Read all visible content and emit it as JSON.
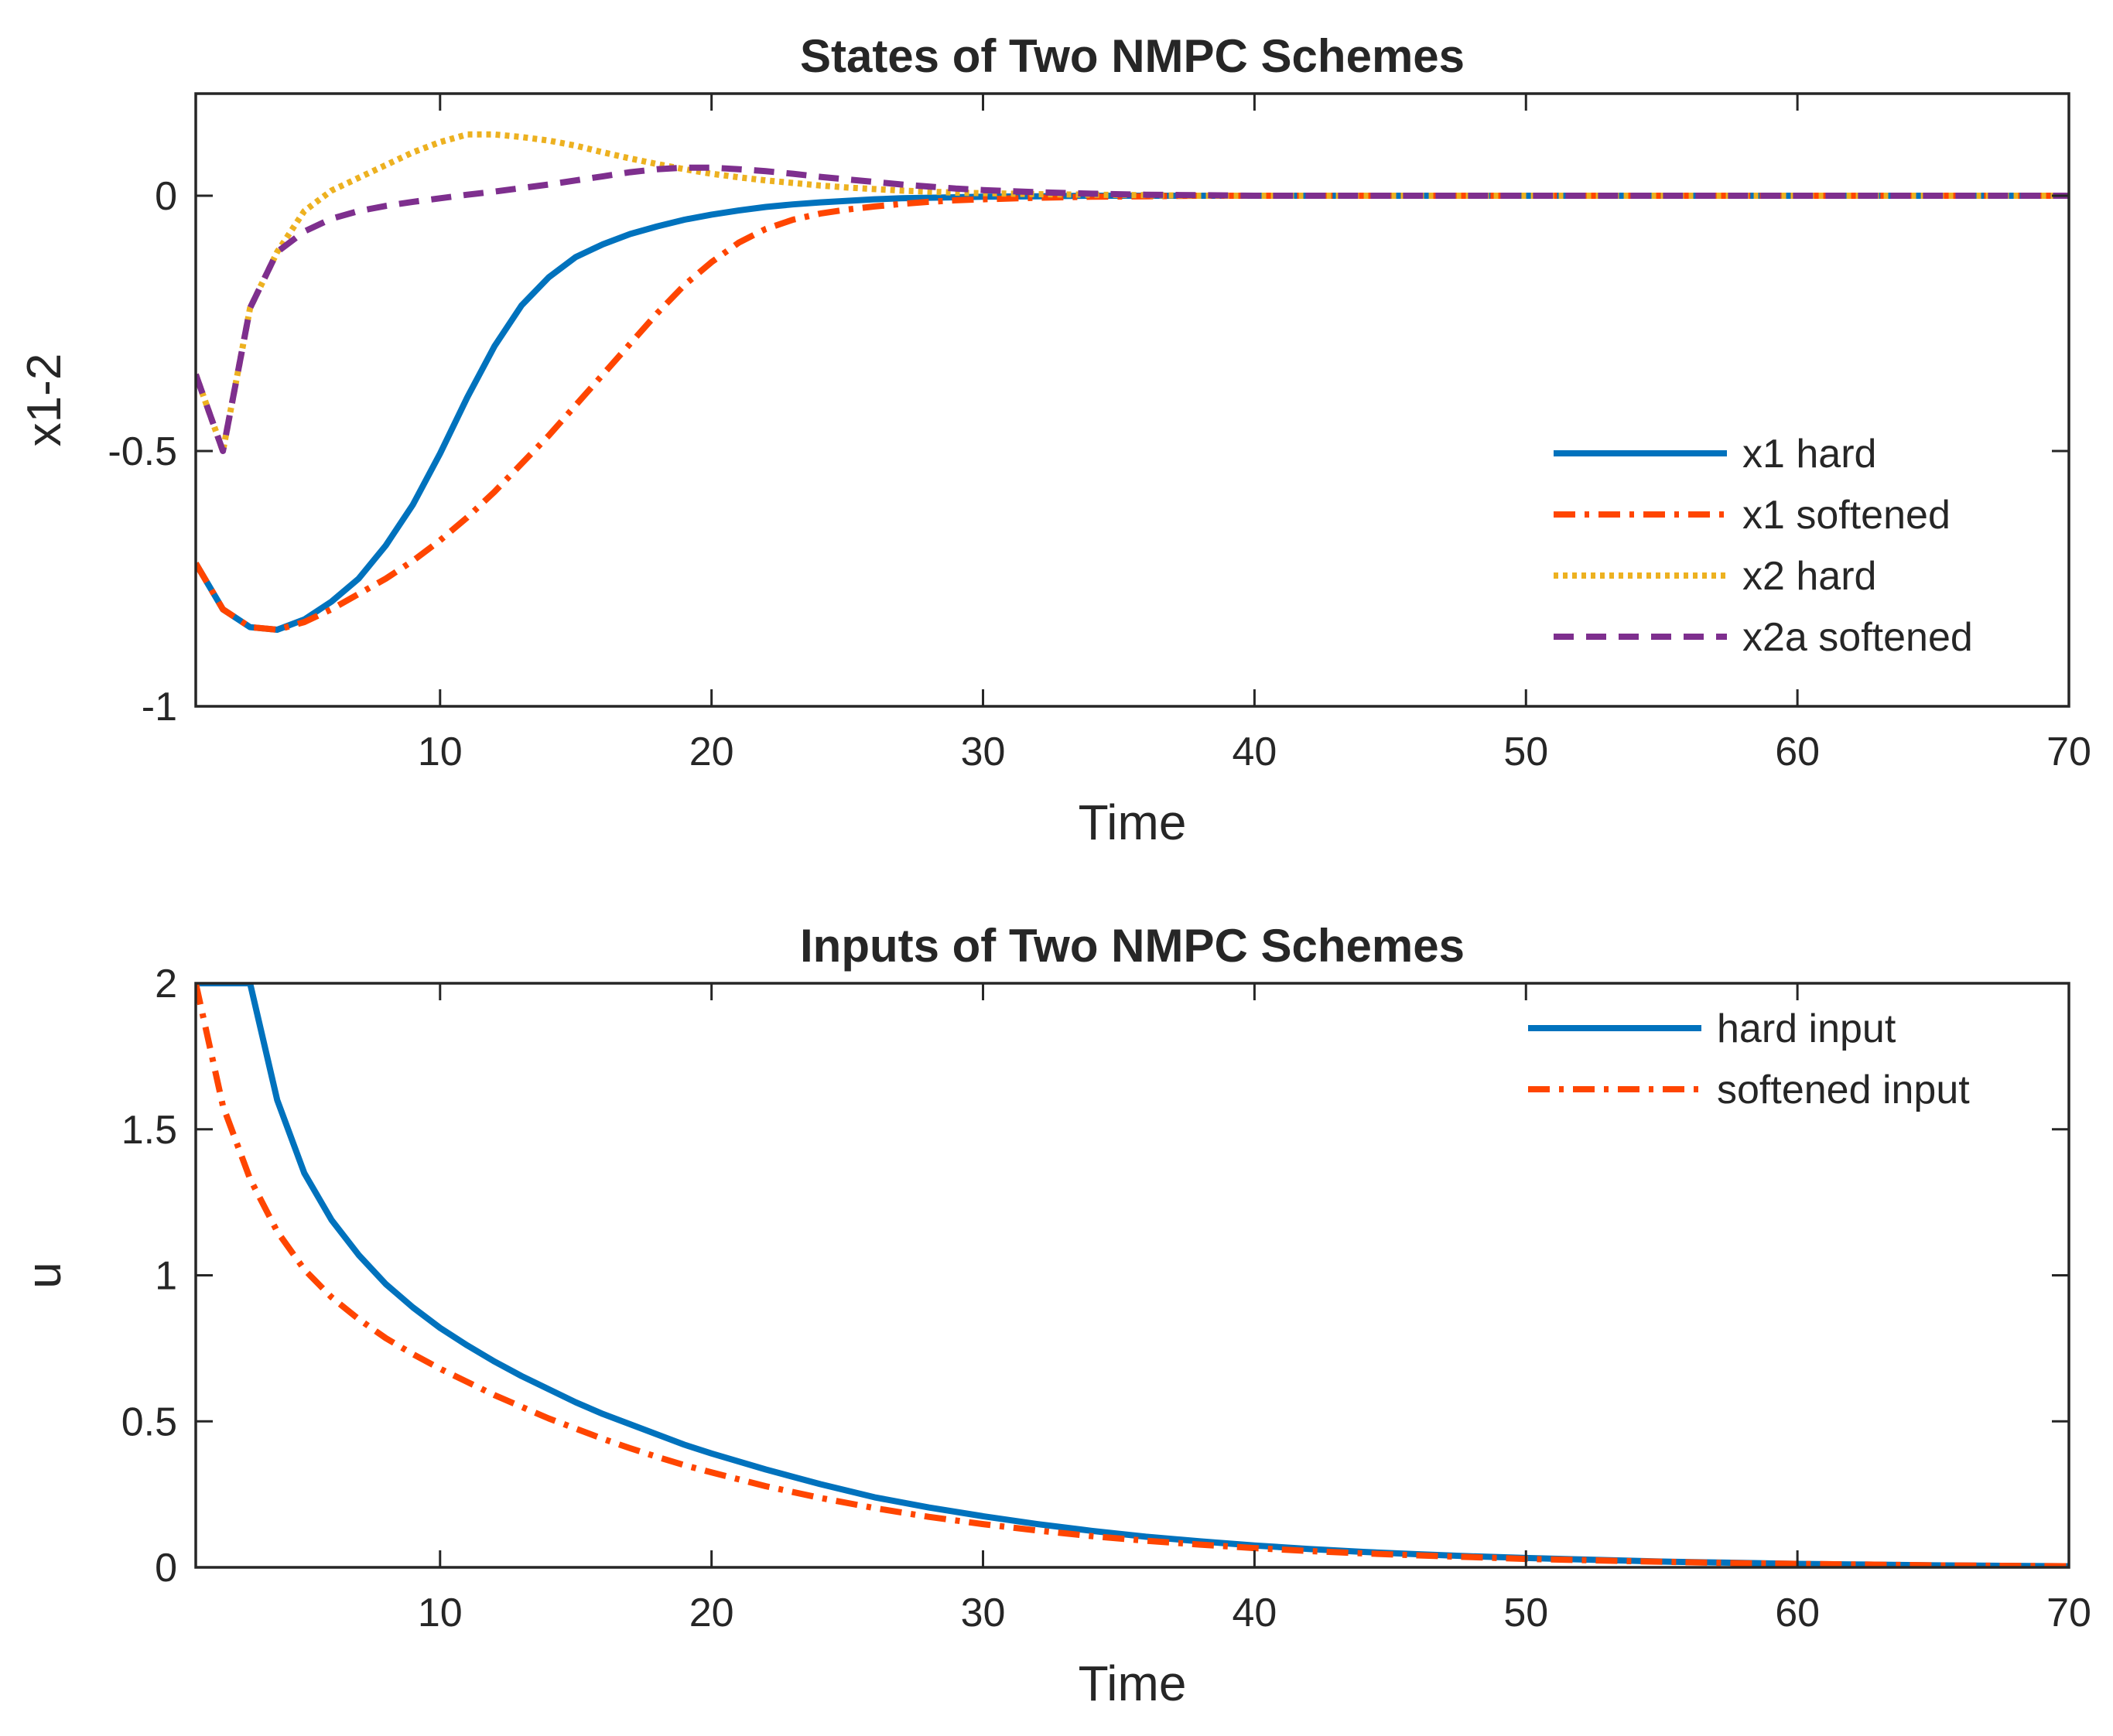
{
  "chart_data": [
    {
      "type": "line",
      "title": "States of Two NMPC Schemes",
      "xlabel": "Time",
      "ylabel": "x1-2",
      "xlim": [
        1,
        70
      ],
      "ylim": [
        -1,
        0.2
      ],
      "xticks": [
        10,
        20,
        30,
        40,
        50,
        60,
        70
      ],
      "xtick_labels": [
        "10",
        "20",
        "30",
        "40",
        "50",
        "60",
        "70"
      ],
      "yticks": [
        -1,
        -0.5,
        0
      ],
      "ytick_labels": [
        "-1",
        "-0.5",
        "0"
      ],
      "grid": false,
      "legend_position": "bottom-right",
      "series": [
        {
          "name": "x1 hard",
          "color": "#0072BD",
          "style": "solid",
          "x": [
            1,
            2,
            3,
            4,
            5,
            6,
            7,
            8,
            9,
            10,
            11,
            12,
            13,
            14,
            15,
            16,
            17,
            18,
            19,
            20,
            21,
            22,
            23,
            24,
            25,
            26,
            27,
            28,
            29,
            30,
            32,
            34,
            36,
            38,
            40,
            45,
            50,
            55,
            60,
            65,
            70
          ],
          "y": [
            -0.72,
            -0.81,
            -0.845,
            -0.85,
            -0.83,
            -0.795,
            -0.75,
            -0.685,
            -0.605,
            -0.505,
            -0.395,
            -0.295,
            -0.215,
            -0.16,
            -0.12,
            -0.095,
            -0.075,
            -0.06,
            -0.047,
            -0.037,
            -0.029,
            -0.022,
            -0.017,
            -0.013,
            -0.01,
            -0.007,
            -0.005,
            -0.004,
            -0.003,
            -0.002,
            -0.001,
            0,
            0,
            0,
            0,
            0,
            0,
            0,
            0,
            0,
            0
          ]
        },
        {
          "name": "x1 softened",
          "color": "#FF4500",
          "style": "dashdot",
          "x": [
            1,
            2,
            3,
            4,
            5,
            6,
            7,
            8,
            9,
            10,
            11,
            12,
            13,
            14,
            15,
            16,
            17,
            18,
            19,
            20,
            21,
            22,
            23,
            24,
            25,
            26,
            27,
            28,
            29,
            30,
            32,
            34,
            36,
            38,
            40,
            45,
            50,
            55,
            60,
            65,
            70
          ],
          "y": [
            -0.72,
            -0.81,
            -0.845,
            -0.85,
            -0.835,
            -0.81,
            -0.78,
            -0.75,
            -0.715,
            -0.675,
            -0.63,
            -0.58,
            -0.525,
            -0.47,
            -0.41,
            -0.35,
            -0.29,
            -0.23,
            -0.175,
            -0.13,
            -0.092,
            -0.065,
            -0.047,
            -0.035,
            -0.027,
            -0.021,
            -0.016,
            -0.012,
            -0.009,
            -0.007,
            -0.004,
            -0.002,
            -0.001,
            0,
            0,
            0,
            0,
            0,
            0,
            0,
            0
          ]
        },
        {
          "name": "x2 hard",
          "color": "#EDB120",
          "style": "dotted",
          "x": [
            1,
            2,
            3,
            4,
            5,
            6,
            7,
            8,
            9,
            10,
            11,
            12,
            13,
            14,
            15,
            16,
            17,
            18,
            19,
            20,
            21,
            22,
            23,
            24,
            25,
            26,
            27,
            28,
            29,
            30,
            32,
            34,
            36,
            38,
            40,
            45,
            50,
            55,
            60,
            65,
            70
          ],
          "y": [
            -0.35,
            -0.5,
            -0.22,
            -0.11,
            -0.03,
            0.01,
            0.035,
            0.06,
            0.085,
            0.105,
            0.12,
            0.12,
            0.115,
            0.108,
            0.098,
            0.085,
            0.073,
            0.062,
            0.052,
            0.043,
            0.036,
            0.03,
            0.025,
            0.02,
            0.016,
            0.013,
            0.01,
            0.008,
            0.006,
            0.005,
            0.003,
            0.002,
            0.001,
            0,
            0,
            0,
            0,
            0,
            0,
            0,
            0
          ]
        },
        {
          "name": "x2a softened",
          "color": "#7E2F8E",
          "style": "dashed",
          "x": [
            1,
            2,
            3,
            4,
            5,
            6,
            7,
            8,
            9,
            10,
            11,
            12,
            13,
            14,
            15,
            16,
            17,
            18,
            19,
            20,
            21,
            22,
            23,
            24,
            25,
            26,
            27,
            28,
            29,
            30,
            32,
            34,
            36,
            38,
            40,
            45,
            50,
            55,
            60,
            65,
            70
          ],
          "y": [
            -0.35,
            -0.5,
            -0.22,
            -0.11,
            -0.07,
            -0.045,
            -0.03,
            -0.02,
            -0.012,
            -0.005,
            0.002,
            0.008,
            0.015,
            0.022,
            0.03,
            0.038,
            0.046,
            0.052,
            0.055,
            0.055,
            0.052,
            0.048,
            0.043,
            0.037,
            0.032,
            0.027,
            0.022,
            0.018,
            0.014,
            0.011,
            0.007,
            0.004,
            0.002,
            0.001,
            0,
            0,
            0,
            0,
            0,
            0,
            0
          ]
        }
      ]
    },
    {
      "type": "line",
      "title": "Inputs of Two NMPC Schemes",
      "xlabel": "Time",
      "ylabel": "u",
      "xlim": [
        1,
        70
      ],
      "ylim": [
        0,
        2
      ],
      "xticks": [
        10,
        20,
        30,
        40,
        50,
        60,
        70
      ],
      "xtick_labels": [
        "10",
        "20",
        "30",
        "40",
        "50",
        "60",
        "70"
      ],
      "yticks": [
        0,
        0.5,
        1,
        1.5,
        2
      ],
      "ytick_labels": [
        "0",
        "0.5",
        "1",
        "1.5",
        "2"
      ],
      "grid": false,
      "legend_position": "top-right",
      "series": [
        {
          "name": "hard input",
          "color": "#0072BD",
          "style": "solid",
          "x": [
            1,
            2,
            3,
            4,
            5,
            6,
            7,
            8,
            9,
            10,
            11,
            12,
            13,
            14,
            15,
            16,
            17,
            18,
            19,
            20,
            22,
            24,
            26,
            28,
            30,
            32,
            34,
            36,
            38,
            40,
            42,
            44,
            46,
            48,
            50,
            52,
            55,
            58,
            60,
            62,
            65,
            68,
            70
          ],
          "y": [
            2,
            2,
            2,
            1.6,
            1.35,
            1.19,
            1.07,
            0.97,
            0.89,
            0.82,
            0.76,
            0.705,
            0.655,
            0.61,
            0.565,
            0.525,
            0.49,
            0.455,
            0.42,
            0.39,
            0.335,
            0.285,
            0.24,
            0.205,
            0.175,
            0.148,
            0.125,
            0.105,
            0.089,
            0.075,
            0.063,
            0.053,
            0.045,
            0.038,
            0.032,
            0.027,
            0.02,
            0.015,
            0.012,
            0.01,
            0.007,
            0.005,
            0.004
          ]
        },
        {
          "name": "softened input",
          "color": "#FF4500",
          "style": "dashdot",
          "x": [
            1,
            2,
            3,
            4,
            5,
            6,
            7,
            8,
            9,
            10,
            11,
            12,
            13,
            14,
            15,
            16,
            17,
            18,
            19,
            20,
            22,
            24,
            26,
            28,
            30,
            32,
            34,
            36,
            38,
            40,
            42,
            44,
            46,
            48,
            50,
            52,
            55,
            58,
            60,
            62,
            65,
            68,
            70
          ],
          "y": [
            2,
            1.58,
            1.33,
            1.15,
            1.02,
            0.925,
            0.85,
            0.785,
            0.73,
            0.68,
            0.635,
            0.59,
            0.55,
            0.51,
            0.475,
            0.44,
            0.408,
            0.378,
            0.35,
            0.325,
            0.278,
            0.238,
            0.203,
            0.173,
            0.148,
            0.126,
            0.107,
            0.091,
            0.078,
            0.066,
            0.056,
            0.048,
            0.041,
            0.035,
            0.029,
            0.025,
            0.019,
            0.014,
            0.012,
            0.01,
            0.007,
            0.005,
            0.004
          ]
        }
      ]
    }
  ]
}
